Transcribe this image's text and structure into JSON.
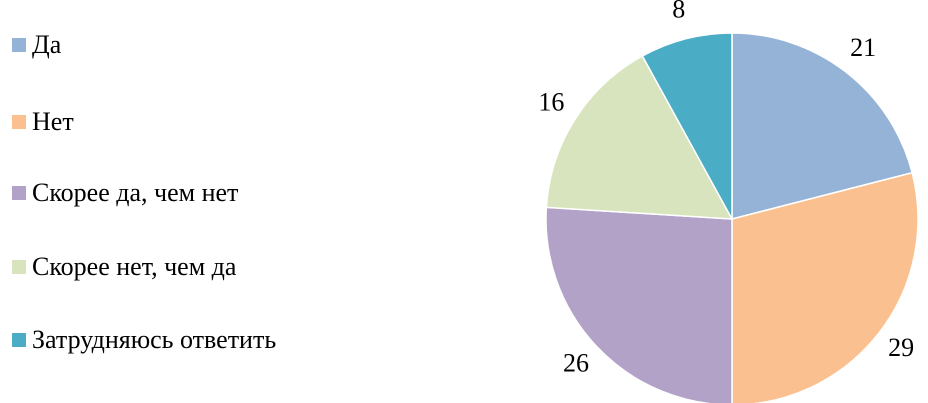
{
  "chart_data": {
    "type": "pie",
    "categories": [
      "Да",
      "Нет",
      "Скорее да, чем нет",
      "Скорее нет, чем да",
      "Затрудняюсь ответить"
    ],
    "values": [
      21,
      29,
      26,
      16,
      8
    ],
    "colors": [
      "#95b3d7",
      "#fac090",
      "#b3a2c7",
      "#d7e4bd",
      "#4bacc6"
    ],
    "legend": "left"
  }
}
